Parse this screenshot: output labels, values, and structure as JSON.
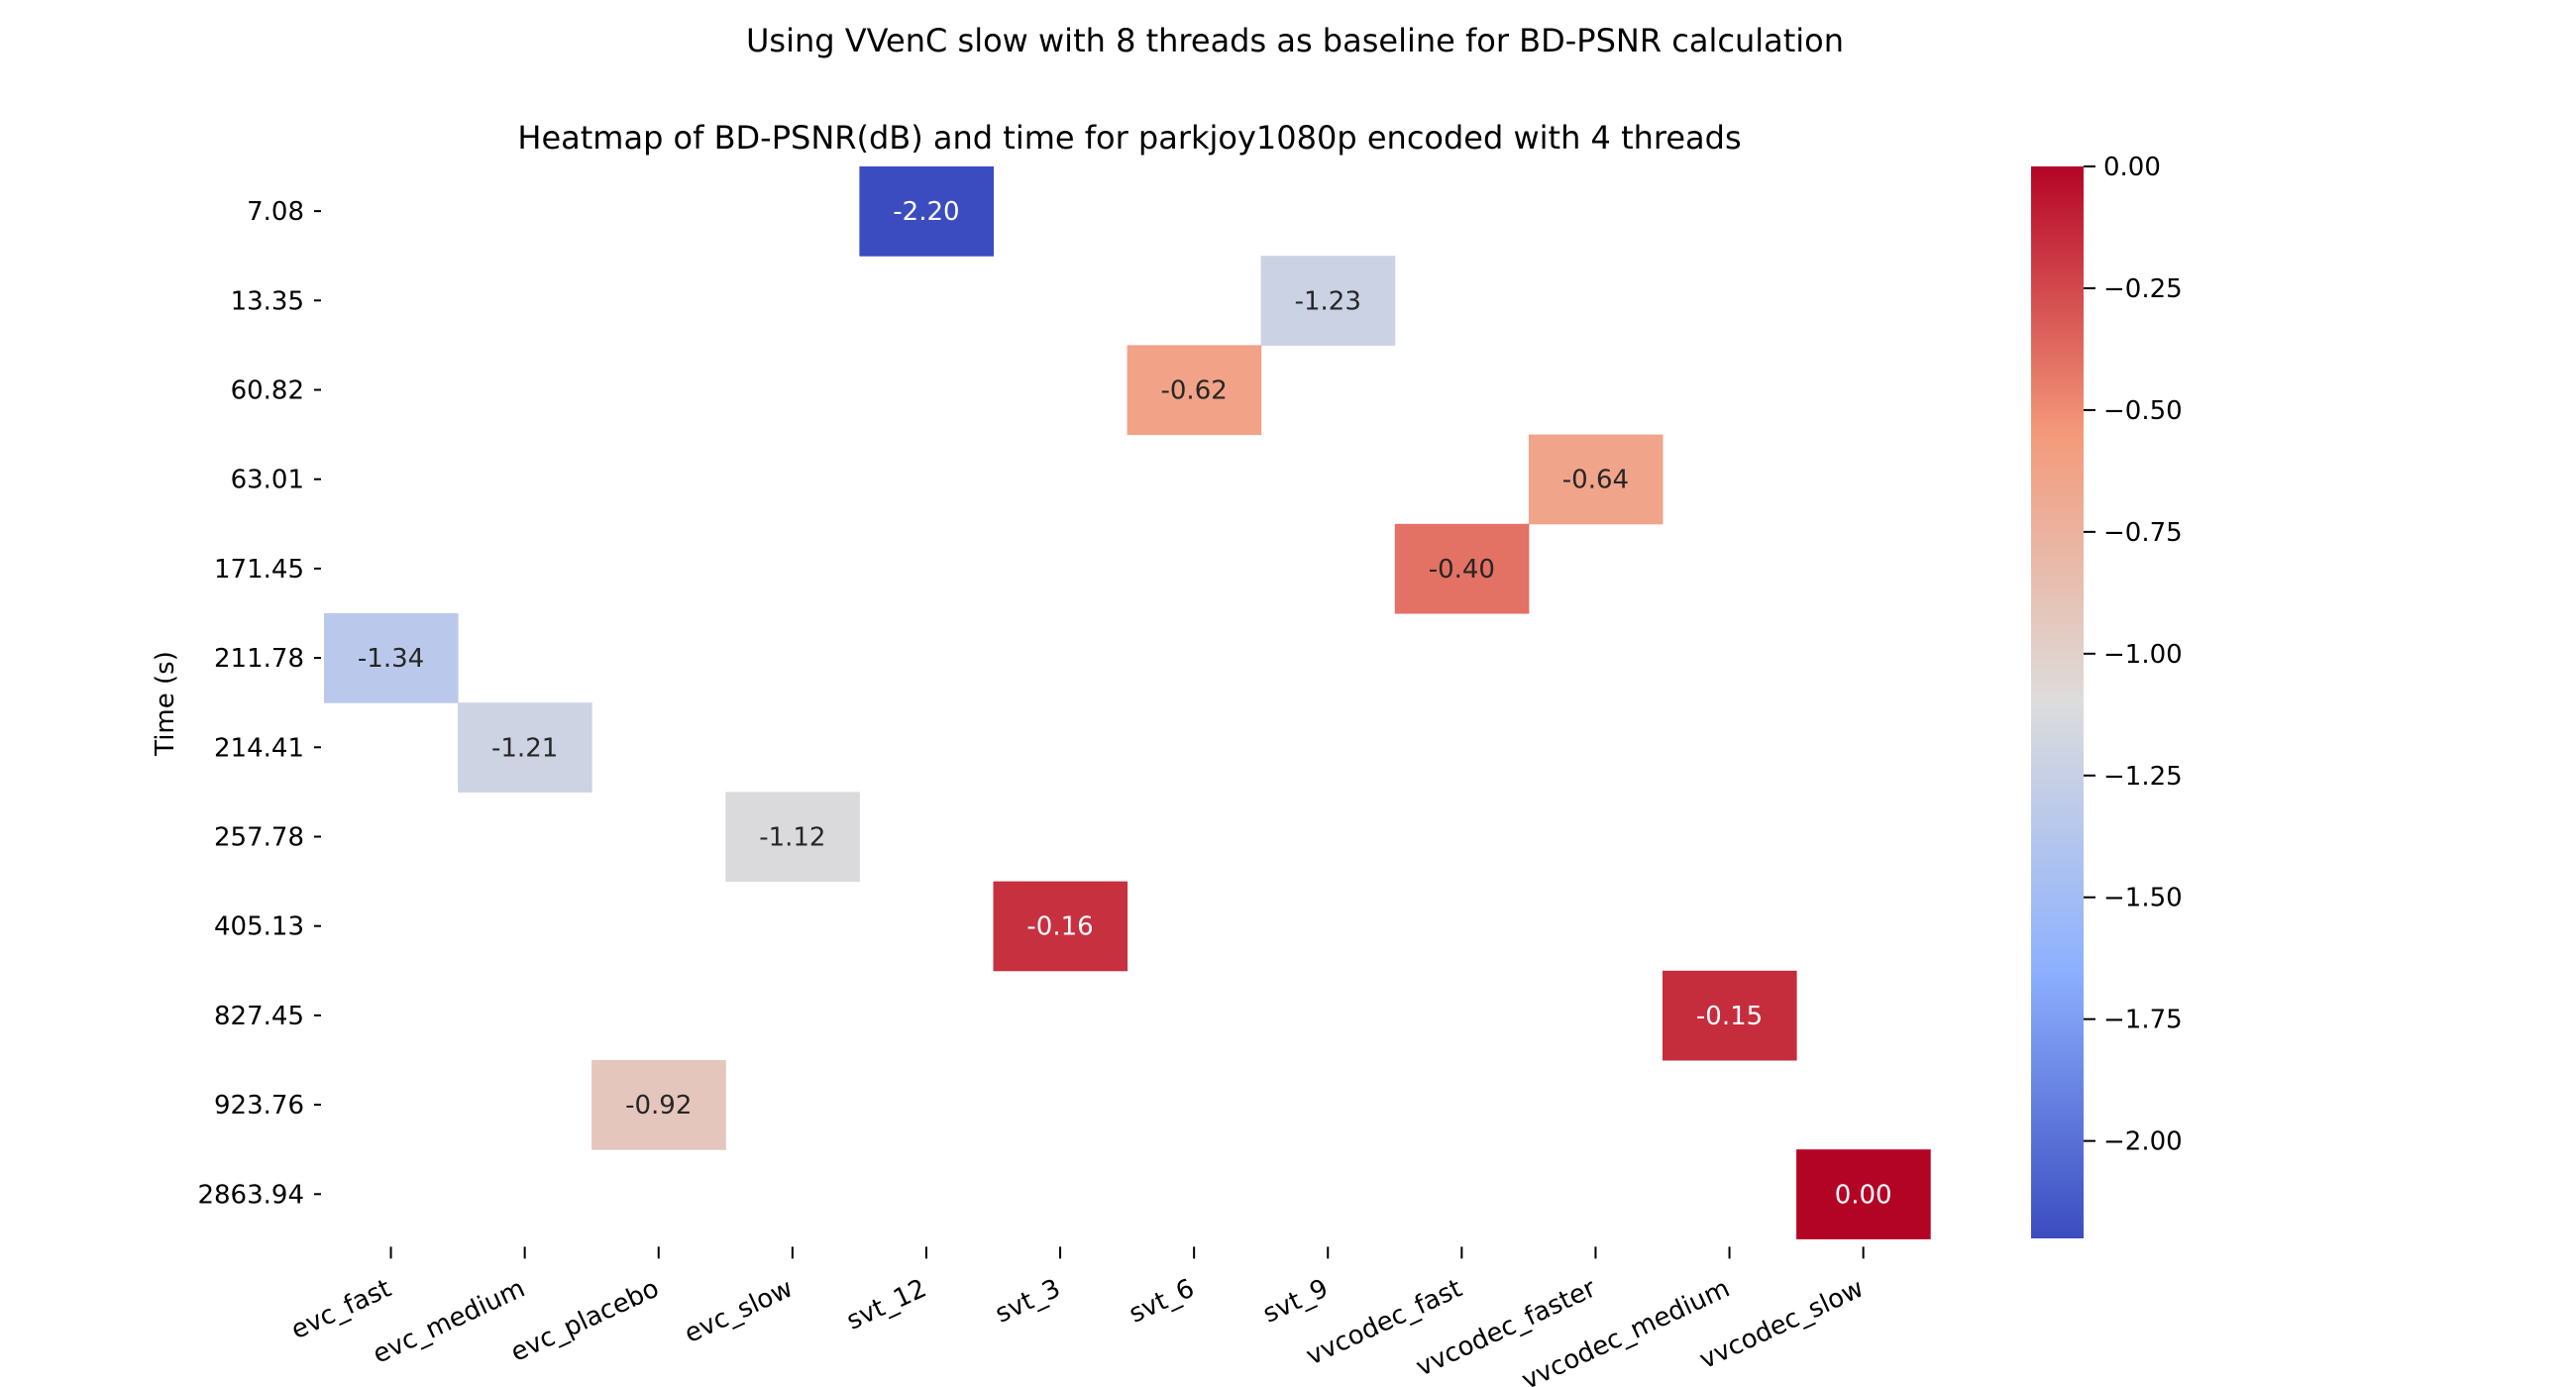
{
  "figure": {
    "suptitle": "Using VVenC slow with 8 threads as baseline for BD-PSNR calculation"
  },
  "chart_data": {
    "type": "heatmap",
    "title": "Heatmap of BD-PSNR(dB) and time for parkjoy1080p encoded with 4 threads",
    "xlabel": "",
    "ylabel": "Time (s)",
    "x_categories": [
      "evc_fast",
      "evc_medium",
      "evc_placebo",
      "evc_slow",
      "svt_12",
      "svt_3",
      "svt_6",
      "svt_9",
      "vvcodec_fast",
      "vvcodec_faster",
      "vvcodec_medium",
      "vvcodec_slow"
    ],
    "y_categories": [
      "7.08",
      "13.35",
      "60.82",
      "63.01",
      "171.45",
      "211.78",
      "214.41",
      "257.78",
      "405.13",
      "827.45",
      "923.76",
      "2863.94"
    ],
    "cells": [
      {
        "x": "svt_12",
        "y": "7.08",
        "value": -2.2,
        "label": "-2.20"
      },
      {
        "x": "svt_9",
        "y": "13.35",
        "value": -1.23,
        "label": "-1.23"
      },
      {
        "x": "svt_6",
        "y": "60.82",
        "value": -0.62,
        "label": "-0.62"
      },
      {
        "x": "vvcodec_faster",
        "y": "63.01",
        "value": -0.64,
        "label": "-0.64"
      },
      {
        "x": "vvcodec_fast",
        "y": "171.45",
        "value": -0.4,
        "label": "-0.40"
      },
      {
        "x": "evc_fast",
        "y": "211.78",
        "value": -1.34,
        "label": "-1.34"
      },
      {
        "x": "evc_medium",
        "y": "214.41",
        "value": -1.21,
        "label": "-1.21"
      },
      {
        "x": "evc_slow",
        "y": "257.78",
        "value": -1.12,
        "label": "-1.12"
      },
      {
        "x": "svt_3",
        "y": "405.13",
        "value": -0.16,
        "label": "-0.16"
      },
      {
        "x": "vvcodec_medium",
        "y": "827.45",
        "value": -0.15,
        "label": "-0.15"
      },
      {
        "x": "evc_placebo",
        "y": "923.76",
        "value": -0.92,
        "label": "-0.92"
      },
      {
        "x": "vvcodec_slow",
        "y": "2863.94",
        "value": 0.0,
        "label": "0.00"
      }
    ],
    "colorbar": {
      "colormap": "coolwarm",
      "vmin": -2.2,
      "vmax": 0.0,
      "ticks": [
        0.0,
        -0.25,
        -0.5,
        -0.75,
        -1.0,
        -1.25,
        -1.5,
        -1.75,
        -2.0
      ],
      "tick_labels": [
        "0.00",
        "−0.25",
        "−0.50",
        "−0.75",
        "−1.00",
        "−1.25",
        "−1.50",
        "−1.75",
        "−2.00"
      ]
    },
    "grid": false,
    "legend": "colorbar-right"
  }
}
